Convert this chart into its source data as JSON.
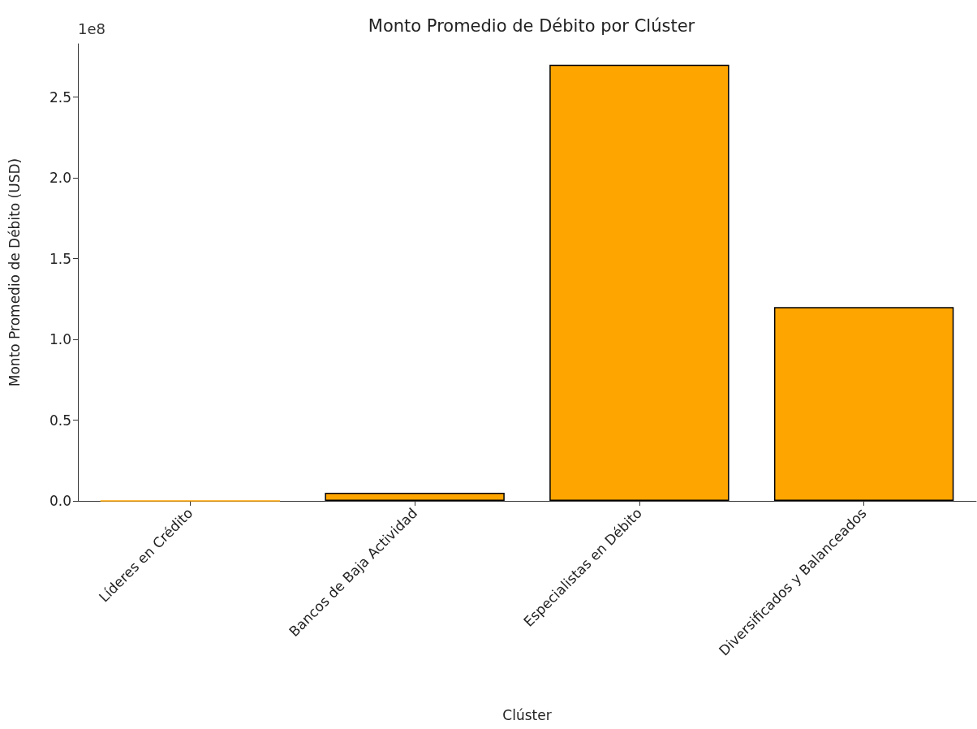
{
  "chart_data": {
    "type": "bar",
    "title": "Monto Promedio de Débito por Clúster",
    "xlabel": "Clúster",
    "ylabel": "Monto Promedio de Débito (USD)",
    "categories": [
      "Líderes en Crédito",
      "Bancos de Baja Actividad",
      "Especialistas en Débito",
      "Diversificados y Balanceados"
    ],
    "values": [
      0,
      0.05,
      2.7,
      1.2
    ],
    "color": "#ffa500",
    "ylim": [
      0,
      2.83
    ],
    "yticks": [
      {
        "value": 0,
        "label": "0.0"
      },
      {
        "value": 0.5,
        "label": "0.5"
      },
      {
        "value": 1,
        "label": "1.0"
      },
      {
        "value": 1.5,
        "label": "1.5"
      },
      {
        "value": 2,
        "label": "2.0"
      },
      {
        "value": 2.5,
        "label": "2.5"
      }
    ],
    "annotations": [
      "1e8"
    ],
    "grid": false
  }
}
